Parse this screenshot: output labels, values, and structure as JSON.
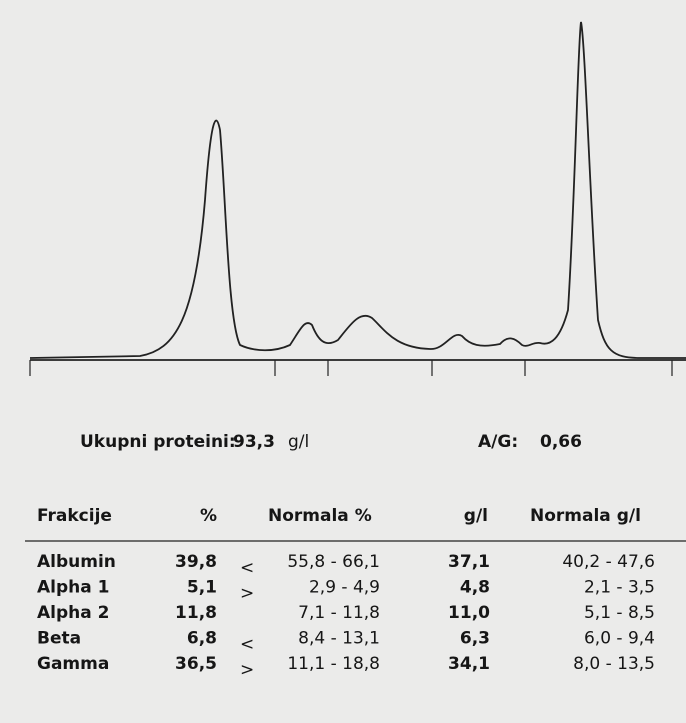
{
  "summary": {
    "total_label": "Ukupni proteini:",
    "total_value": "93,3",
    "total_unit": "g/l",
    "ag_label": "A/G:",
    "ag_value": "0,66"
  },
  "table": {
    "headers": [
      "Frakcije",
      "%",
      "Normala %",
      "g/l",
      "Normala g/l"
    ],
    "rows": [
      {
        "name": "Albumin",
        "percent": "39,8",
        "flag": "<",
        "normal_percent": "55,8 - 66,1",
        "gl": "37,1",
        "normal_gl": "40,2 - 47,6"
      },
      {
        "name": "Alpha 1",
        "percent": "5,1",
        "flag": ">",
        "normal_percent": "2,9 - 4,9",
        "gl": "4,8",
        "normal_gl": "2,1 - 3,5"
      },
      {
        "name": "Alpha 2",
        "percent": "11,8",
        "normal_percent": "7,1 - 11,8",
        "gl": "11,0",
        "normal_gl": "5,1 - 8,5"
      },
      {
        "name": "Beta",
        "percent": "6,8",
        "flag": "<",
        "normal_percent": "8,4 - 13,1",
        "gl": "6,3",
        "normal_gl": "6,0 - 9,4"
      },
      {
        "name": "Gamma",
        "percent": "36,5",
        "flag": ">",
        "normal_percent": "11,1 - 18,8",
        "gl": "34,1",
        "normal_gl": "8,0 - 13,5"
      }
    ]
  }
}
